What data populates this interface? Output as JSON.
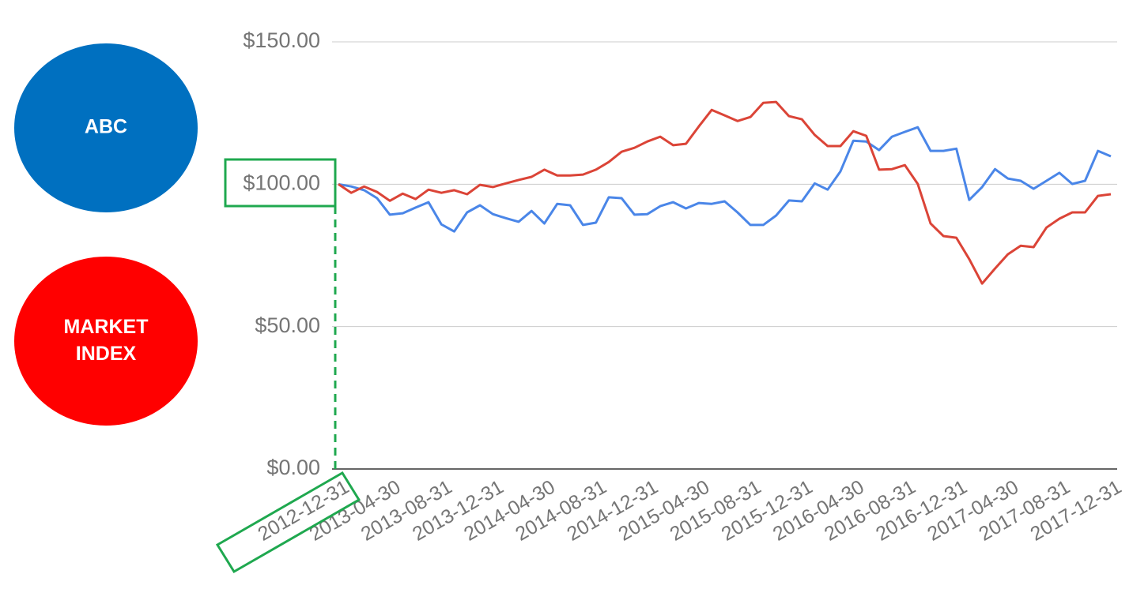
{
  "chart_data": {
    "type": "line",
    "categories": [
      "2012-12-31",
      null,
      null,
      null,
      "2013-04-30",
      null,
      null,
      null,
      "2013-08-31",
      null,
      null,
      null,
      "2013-12-31",
      null,
      null,
      null,
      "2014-04-30",
      null,
      null,
      null,
      "2014-08-31",
      null,
      null,
      null,
      "2014-12-31",
      null,
      null,
      null,
      "2015-04-30",
      null,
      null,
      null,
      "2015-08-31",
      null,
      null,
      null,
      "2015-12-31",
      null,
      null,
      null,
      "2016-04-30",
      null,
      null,
      null,
      "2016-08-31",
      null,
      null,
      null,
      "2016-12-31",
      null,
      null,
      null,
      "2017-04-30",
      null,
      null,
      null,
      "2017-08-31",
      null,
      null,
      null,
      "2017-12-31"
    ],
    "series": [
      {
        "name": "ABC",
        "color": "#4a86e8",
        "marker_color": "#0070c0",
        "values": [
          100,
          99.2,
          97.9,
          95.1,
          89.3,
          89.8,
          91.8,
          93.7,
          85.9,
          83.4,
          90.1,
          92.6,
          89.5,
          88.1,
          86.8,
          90.6,
          86.2,
          93.1,
          92.6,
          85.7,
          86.5,
          95.4,
          95.1,
          89.3,
          89.5,
          92.3,
          93.7,
          91.5,
          93.4,
          93.1,
          94.0,
          90.1,
          85.7,
          85.7,
          89.0,
          94.3,
          94.0,
          100.3,
          98.1,
          104.5,
          115.3,
          115.0,
          112.0,
          116.7,
          118.4,
          120.0,
          111.7,
          111.7,
          112.5,
          94.5,
          99.0,
          105.3,
          102.0,
          101.2,
          98.4,
          101.2,
          104.0,
          100.1,
          101.2,
          111.7,
          109.8
        ]
      },
      {
        "name": "MARKET INDEX",
        "color": "#db4437",
        "marker_color": "#ff0000",
        "values": [
          100,
          97.0,
          99.2,
          97.3,
          94.2,
          96.7,
          94.8,
          98.1,
          97.0,
          97.9,
          96.5,
          99.8,
          99.0,
          100.3,
          101.5,
          102.6,
          105.1,
          103.1,
          103.1,
          103.4,
          105.1,
          107.8,
          111.4,
          112.8,
          115.0,
          116.7,
          113.7,
          114.2,
          120.3,
          126.1,
          124.2,
          122.2,
          123.6,
          128.6,
          128.9,
          123.9,
          122.8,
          117.3,
          113.4,
          113.4,
          118.6,
          117.0,
          105.1,
          105.3,
          106.7,
          100.1,
          86.2,
          81.8,
          81.2,
          73.7,
          65.1,
          70.4,
          75.4,
          78.4,
          77.9,
          84.8,
          87.9,
          90.1,
          90.1,
          95.9,
          96.5
        ]
      }
    ],
    "ylim": [
      0,
      150
    ],
    "yticks": [
      {
        "value": 0,
        "label": "$0.00"
      },
      {
        "value": 50,
        "label": "$50.00"
      },
      {
        "value": 100,
        "label": "$100.00"
      },
      {
        "value": 150,
        "label": "$150.00"
      }
    ],
    "grid": true,
    "legend": "left"
  }
}
